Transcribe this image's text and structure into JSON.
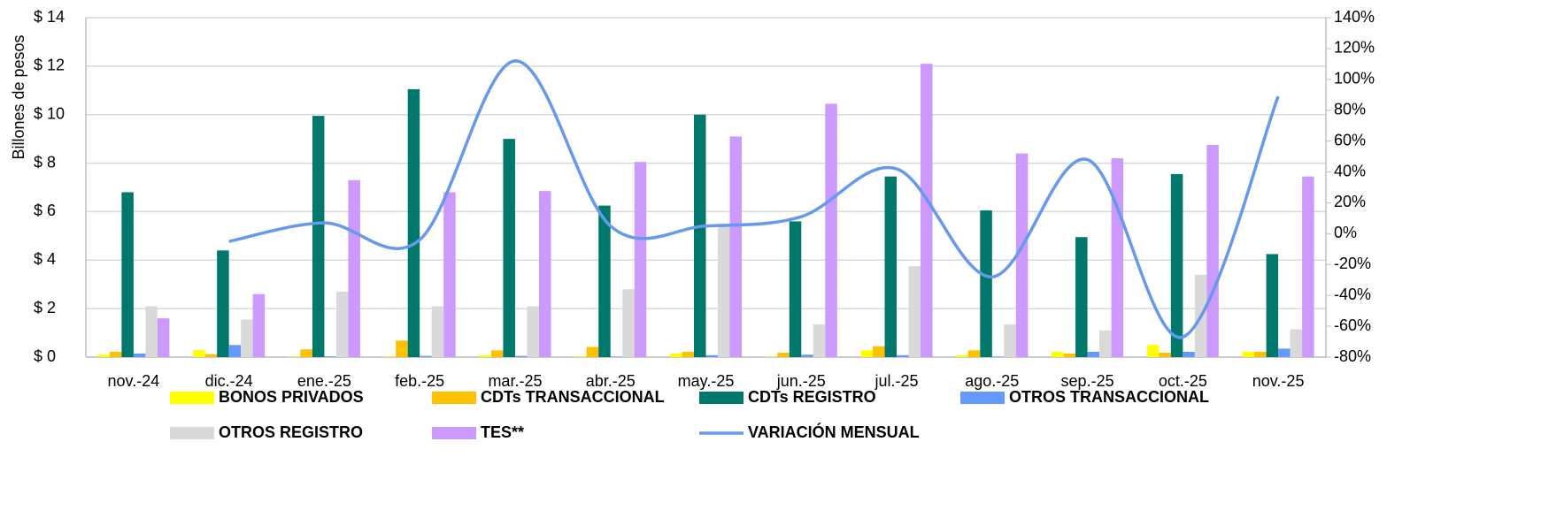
{
  "chart_data": {
    "type": "bar",
    "y_label": "Billones de pesos",
    "categories": [
      "nov.-24",
      "dic.-24",
      "ene.-25",
      "feb.-25",
      "mar.-25",
      "abr.-25",
      "may.-25",
      "jun.-25",
      "jul.-25",
      "ago.-25",
      "sep.-25",
      "oct.-25",
      "nov.-25"
    ],
    "series": [
      {
        "name": "BONOS PRIVADOS",
        "color": "#ffff00",
        "values": [
          0.1,
          0.3,
          0.02,
          0.02,
          0.08,
          0.03,
          0.15,
          0.02,
          0.28,
          0.08,
          0.22,
          0.5,
          0.22
        ]
      },
      {
        "name": "CDTs TRANSACCIONAL",
        "color": "#ffc000",
        "values": [
          0.22,
          0.12,
          0.32,
          0.68,
          0.28,
          0.42,
          0.22,
          0.18,
          0.45,
          0.28,
          0.15,
          0.18,
          0.22
        ]
      },
      {
        "name": "CDTs REGISTRO",
        "color": "#00786c",
        "values": [
          6.8,
          4.4,
          9.95,
          11.05,
          9.0,
          6.25,
          10.0,
          5.6,
          7.45,
          6.05,
          4.95,
          7.55,
          4.25
        ]
      },
      {
        "name": "OTROS TRANSACCIONAL",
        "color": "#6699ff",
        "values": [
          0.15,
          0.5,
          0.03,
          0.05,
          0.05,
          0.02,
          0.08,
          0.1,
          0.08,
          0.02,
          0.22,
          0.22,
          0.35
        ]
      },
      {
        "name": "OTROS REGISTRO",
        "color": "#d9d9d9",
        "values": [
          2.1,
          1.55,
          2.7,
          2.1,
          2.1,
          2.8,
          5.5,
          1.35,
          3.75,
          1.35,
          1.1,
          3.4,
          1.15
        ]
      },
      {
        "name": "TES**",
        "color": "#cc99ff",
        "values": [
          1.6,
          2.6,
          7.3,
          6.8,
          6.85,
          8.05,
          9.1,
          10.45,
          12.1,
          8.4,
          8.2,
          8.75,
          7.45
        ]
      },
      {
        "name": "VARIACIÓN MENSUAL",
        "color": "#6699ee",
        "type": "line",
        "axis": "y2",
        "values": [
          null,
          -5,
          7,
          -4,
          112,
          5,
          5,
          11,
          42,
          -28,
          48,
          -67,
          89
        ]
      }
    ],
    "ylim": [
      0,
      14
    ],
    "yticks": [
      {
        "value": 0,
        "label": "$ 0"
      },
      {
        "value": 2,
        "label": "$ 2"
      },
      {
        "value": 4,
        "label": "$ 4"
      },
      {
        "value": 6,
        "label": "$ 6"
      },
      {
        "value": 8,
        "label": "$ 8"
      },
      {
        "value": 10,
        "label": "$ 10"
      },
      {
        "value": 12,
        "label": "$ 12"
      },
      {
        "value": 14,
        "label": "$ 14"
      }
    ],
    "y2lim": [
      -80,
      140
    ],
    "y2ticks": [
      {
        "value": -80,
        "label": "-80%"
      },
      {
        "value": -60,
        "label": "-60%"
      },
      {
        "value": -40,
        "label": "-40%"
      },
      {
        "value": -20,
        "label": "-20%"
      },
      {
        "value": 0,
        "label": "0%"
      },
      {
        "value": 20,
        "label": "20%"
      },
      {
        "value": 40,
        "label": "40%"
      },
      {
        "value": 60,
        "label": "60%"
      },
      {
        "value": 80,
        "label": "80%"
      },
      {
        "value": 100,
        "label": "100%"
      },
      {
        "value": 120,
        "label": "120%"
      },
      {
        "value": 140,
        "label": "140%"
      }
    ],
    "grid": true
  }
}
